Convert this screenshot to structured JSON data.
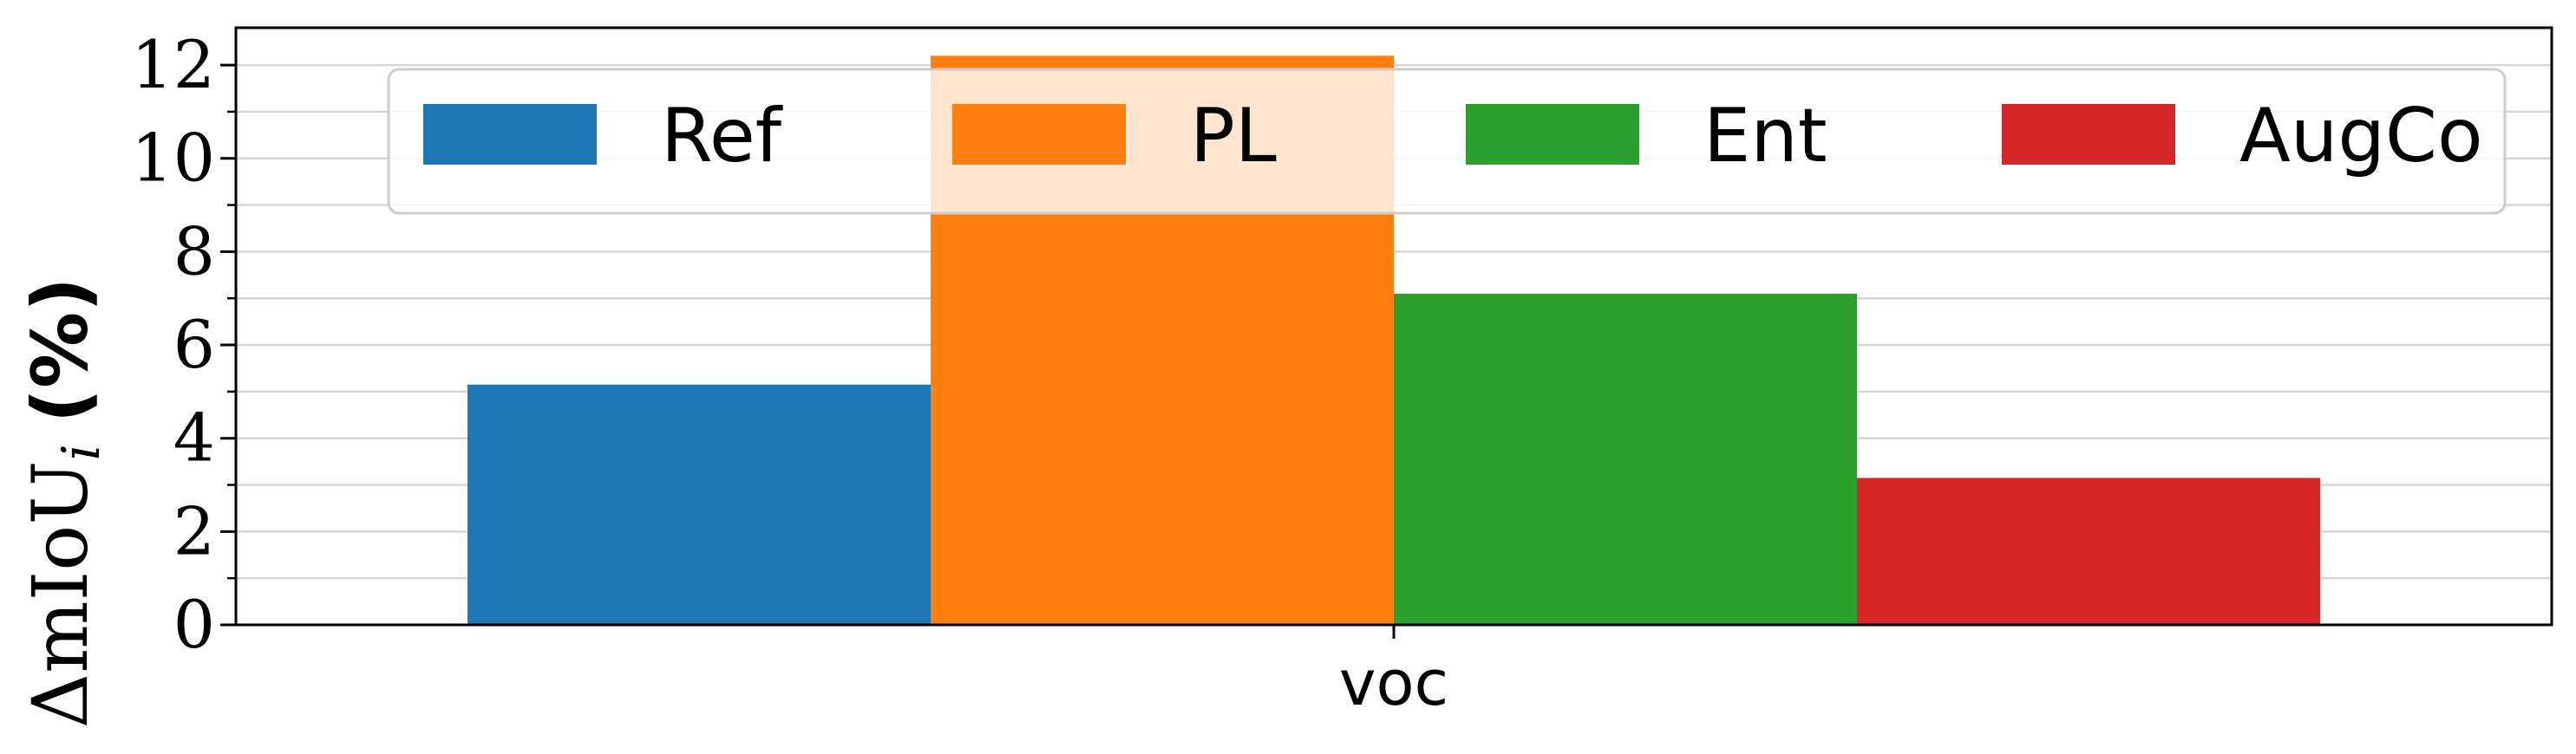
{
  "chart_data": {
    "type": "bar",
    "categories": [
      "voc"
    ],
    "series": [
      {
        "name": "Ref",
        "values": [
          5.15
        ],
        "color": "#1f77b4"
      },
      {
        "name": "PL",
        "values": [
          12.2
        ],
        "color": "#ff7f0e"
      },
      {
        "name": "Ent",
        "values": [
          7.1
        ],
        "color": "#2ca02c"
      },
      {
        "name": "AugCo",
        "values": [
          3.15
        ],
        "color": "#d62728"
      }
    ],
    "ylabel": {
      "main": "ΔmIoU",
      "subscript": "i",
      "unit": "(%)"
    },
    "ylim": [
      0,
      12.8
    ],
    "yticks": [
      0,
      2,
      4,
      6,
      8,
      10,
      12
    ],
    "grid": true,
    "legend": {
      "placement": "top",
      "columns": 4
    }
  }
}
